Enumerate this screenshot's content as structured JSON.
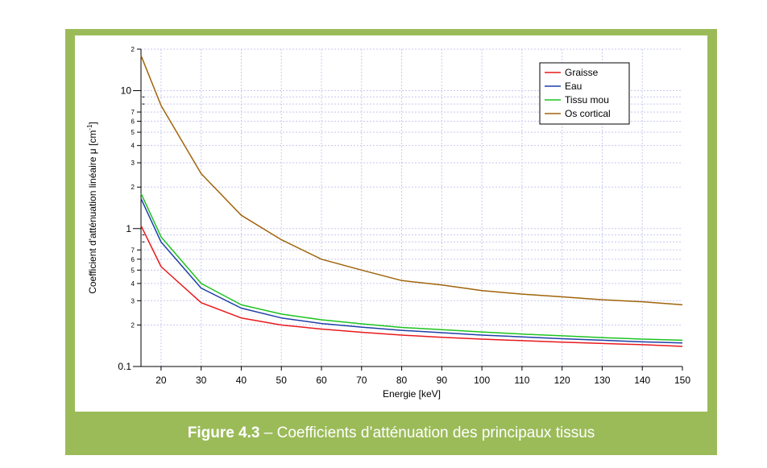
{
  "caption": {
    "label": "Figure 4.3",
    "separator": "–",
    "text": "Coefficients d’atténuation des principaux tissus"
  },
  "chart_data": {
    "type": "line",
    "xlabel": "Energie [keV]",
    "ylabel": "Coefficient d'atténuation linéaire μ [cm",
    "ylabel_superscript": "-1",
    "ylabel_suffix": "]",
    "xlim": [
      15,
      150
    ],
    "ylim": [
      0.1,
      20
    ],
    "y_scale": "log",
    "grid": true,
    "legend_position": "top-right",
    "x_ticks": [
      20,
      30,
      40,
      50,
      60,
      70,
      80,
      90,
      100,
      110,
      120,
      130,
      140,
      150
    ],
    "y_major_ticks": [
      {
        "value": 0.1,
        "label": "0.1"
      },
      {
        "value": 1,
        "label": "1"
      },
      {
        "value": 10,
        "label": "10"
      }
    ],
    "y_minor_ticks": [
      {
        "value": 0.2,
        "label": "2"
      },
      {
        "value": 0.3,
        "label": "3"
      },
      {
        "value": 0.4,
        "label": "4"
      },
      {
        "value": 0.5,
        "label": "5"
      },
      {
        "value": 0.6,
        "label": "6"
      },
      {
        "value": 0.7,
        "label": "7"
      },
      {
        "value": 2,
        "label": "2"
      },
      {
        "value": 3,
        "label": "3"
      },
      {
        "value": 4,
        "label": "4"
      },
      {
        "value": 5,
        "label": "5"
      },
      {
        "value": 6,
        "label": "6"
      },
      {
        "value": 7,
        "label": "7"
      },
      {
        "value": 20,
        "label": "2"
      }
    ],
    "x": [
      15,
      20,
      30,
      40,
      50,
      60,
      70,
      80,
      90,
      100,
      110,
      120,
      130,
      140,
      150
    ],
    "series": [
      {
        "name": "Graisse",
        "color": "#e8191c",
        "values": [
          1.05,
          0.53,
          0.29,
          0.225,
          0.2,
          0.187,
          0.177,
          0.169,
          0.163,
          0.158,
          0.154,
          0.15,
          0.147,
          0.144,
          0.14
        ]
      },
      {
        "name": "Eau",
        "color": "#1f3fa8",
        "values": [
          1.65,
          0.8,
          0.37,
          0.265,
          0.225,
          0.205,
          0.193,
          0.183,
          0.176,
          0.169,
          0.164,
          0.159,
          0.155,
          0.151,
          0.148
        ]
      },
      {
        "name": "Tissu mou",
        "color": "#1ec31e",
        "values": [
          1.8,
          0.87,
          0.4,
          0.28,
          0.24,
          0.218,
          0.204,
          0.192,
          0.185,
          0.178,
          0.172,
          0.167,
          0.162,
          0.158,
          0.155
        ]
      },
      {
        "name": "Os cortical",
        "color": "#a0640a",
        "values": [
          18,
          7.8,
          2.5,
          1.25,
          0.83,
          0.6,
          0.5,
          0.42,
          0.39,
          0.355,
          0.335,
          0.32,
          0.305,
          0.295,
          0.28
        ]
      }
    ]
  }
}
